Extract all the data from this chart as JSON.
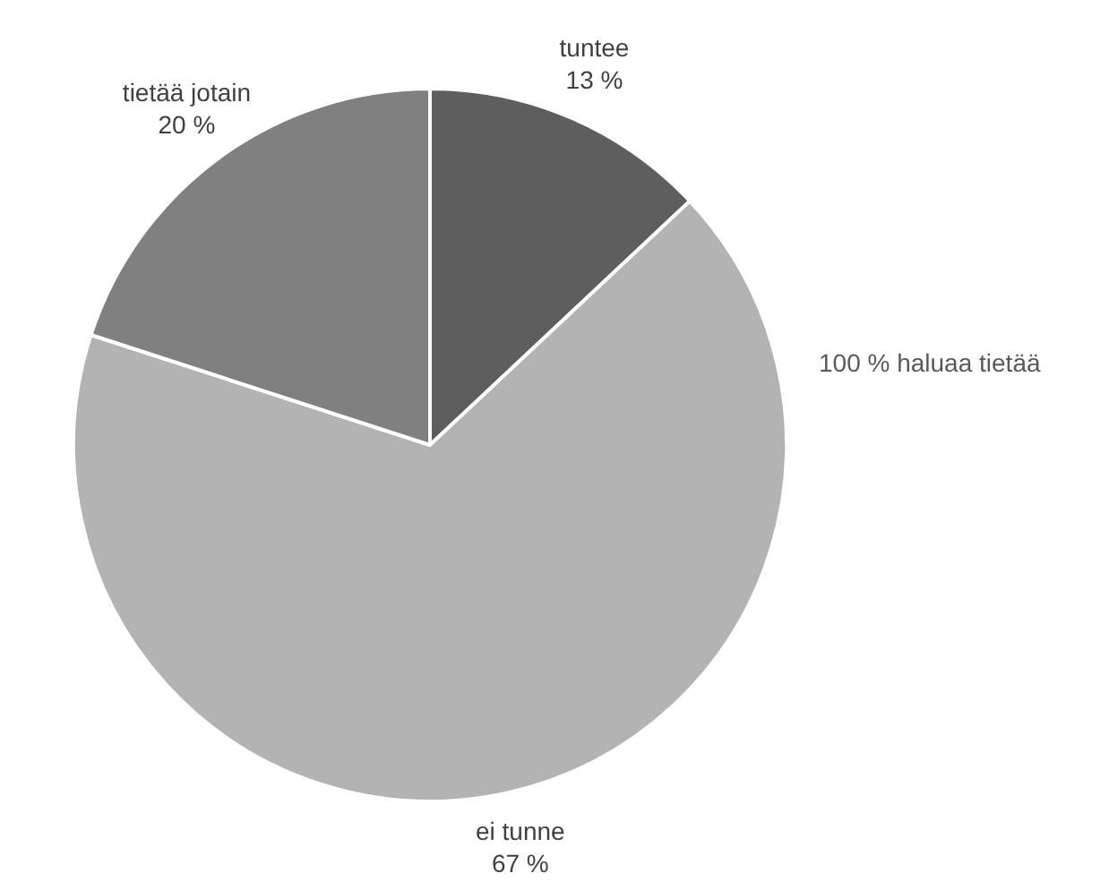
{
  "chart_data": {
    "type": "pie",
    "categories": [
      "tuntee",
      "ei tunne",
      "tietää jotain"
    ],
    "values": [
      13,
      67,
      20
    ],
    "value_labels": [
      "13 %",
      "67 %",
      "20 %"
    ],
    "colors": [
      "#5e5e5e",
      "#b3b3b3",
      "#808080"
    ],
    "annotations": [
      "100 % haluaa tietää"
    ],
    "legend": false
  }
}
